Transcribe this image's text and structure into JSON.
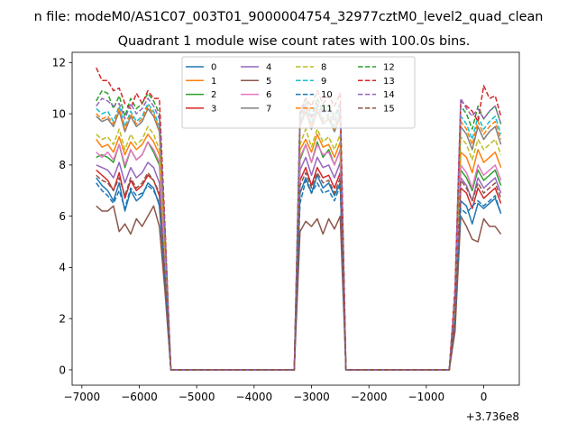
{
  "chart_data": {
    "type": "line",
    "suptitle": "n file: modeM0/AS1C07_003T01_9000004754_32977cztM0_level2_quad_clean",
    "title": "Quadrant 1 module wise count rates with 100.0s bins.",
    "xlabel": "",
    "ylabel": "",
    "x_offset_label": "+3.736e8",
    "xlim": [
      -7170,
      620
    ],
    "ylim": [
      -0.6,
      12.4
    ],
    "xticks": [
      -7000,
      -6000,
      -5000,
      -4000,
      -3000,
      -2000,
      -1000,
      0
    ],
    "xtick_labels": [
      "−7000",
      "−6000",
      "−5000",
      "−4000",
      "−3000",
      "−2000",
      "−1000",
      "0"
    ],
    "yticks": [
      0,
      2,
      4,
      6,
      8,
      10,
      12
    ],
    "ytick_labels": [
      "0",
      "2",
      "4",
      "6",
      "8",
      "10",
      "12"
    ],
    "grid": false,
    "legend_position": "top-center",
    "legend_columns": 4,
    "colors": [
      "#1f77b4",
      "#ff7f0e",
      "#2ca02c",
      "#d62728",
      "#9467bd",
      "#8c564b",
      "#e377c2",
      "#7f7f7f",
      "#bcbd22",
      "#17becf"
    ],
    "segment_x": [
      [
        -6750,
        -6650,
        -6550,
        -6450,
        -6350,
        -6250,
        -6150,
        -6050,
        -5950,
        -5850,
        -5750,
        -5650,
        -5550,
        -5450
      ],
      [
        -5450,
        -3300
      ],
      [
        -3300,
        -3200,
        -3100,
        -3000,
        -2900,
        -2800,
        -2700,
        -2600,
        -2500,
        -2400
      ],
      [
        -2400,
        -600
      ],
      [
        -600,
        -500,
        -400,
        -300,
        -200,
        -100,
        0,
        100,
        200,
        300
      ]
    ],
    "series": [
      {
        "name": "0",
        "style": "solid",
        "segments": [
          [
            7.5,
            7.2,
            7.0,
            6.6,
            7.3,
            6.2,
            7.0,
            6.6,
            6.8,
            7.3,
            7.1,
            6.4,
            3.4,
            0
          ],
          [
            0,
            0
          ],
          [
            0,
            6.9,
            7.5,
            6.9,
            7.6,
            7.1,
            7.3,
            6.8,
            7.3,
            0
          ],
          [
            0,
            0
          ],
          [
            0,
            1.8,
            6.6,
            6.4,
            5.7,
            6.5,
            6.3,
            6.5,
            6.7,
            6.1
          ]
        ]
      },
      {
        "name": "1",
        "style": "solid",
        "segments": [
          [
            9.0,
            8.7,
            8.8,
            8.5,
            9.1,
            8.4,
            8.9,
            8.6,
            8.8,
            9.2,
            8.9,
            8.4,
            4.6,
            0
          ],
          [
            0,
            0
          ],
          [
            0,
            8.6,
            9.0,
            8.5,
            9.2,
            8.7,
            8.8,
            8.3,
            8.9,
            0
          ],
          [
            0,
            0
          ],
          [
            0,
            2.4,
            8.5,
            8.3,
            7.7,
            8.6,
            8.1,
            8.3,
            8.5,
            7.9
          ]
        ]
      },
      {
        "name": "2",
        "style": "solid",
        "segments": [
          [
            8.3,
            8.4,
            8.3,
            8.1,
            8.8,
            7.9,
            8.6,
            8.2,
            8.4,
            8.9,
            8.5,
            8.0,
            4.3,
            0
          ],
          [
            0,
            0
          ],
          [
            0,
            8.2,
            8.8,
            8.1,
            8.9,
            8.3,
            8.6,
            8.0,
            8.6,
            0
          ],
          [
            0,
            0
          ],
          [
            0,
            2.2,
            7.8,
            7.5,
            7.0,
            7.8,
            7.4,
            7.6,
            7.8,
            7.2
          ]
        ]
      },
      {
        "name": "3",
        "style": "solid",
        "segments": [
          [
            7.8,
            7.6,
            7.4,
            7.0,
            7.7,
            6.7,
            7.4,
            7.0,
            7.2,
            7.6,
            7.4,
            6.8,
            3.6,
            0
          ],
          [
            0,
            0
          ],
          [
            0,
            7.4,
            7.9,
            7.2,
            7.9,
            7.5,
            7.6,
            7.1,
            7.7,
            0
          ],
          [
            0,
            0
          ],
          [
            0,
            2.0,
            7.1,
            6.9,
            6.3,
            7.1,
            6.7,
            6.9,
            7.1,
            6.5
          ]
        ]
      },
      {
        "name": "4",
        "style": "solid",
        "segments": [
          [
            8.0,
            7.9,
            7.8,
            7.5,
            8.1,
            7.3,
            7.9,
            7.5,
            7.7,
            8.1,
            7.9,
            7.3,
            3.9,
            0
          ],
          [
            0,
            0
          ],
          [
            0,
            7.8,
            8.3,
            7.6,
            8.3,
            7.9,
            8.0,
            7.5,
            8.1,
            0
          ],
          [
            0,
            0
          ],
          [
            0,
            2.1,
            7.5,
            7.2,
            6.6,
            7.5,
            7.1,
            7.3,
            7.5,
            6.9
          ]
        ]
      },
      {
        "name": "5",
        "style": "solid",
        "segments": [
          [
            6.4,
            6.2,
            6.2,
            6.4,
            5.4,
            5.7,
            5.3,
            5.9,
            5.6,
            6.0,
            6.4,
            5.6,
            3.0,
            0
          ],
          [
            0,
            0
          ],
          [
            0,
            5.4,
            5.8,
            5.6,
            5.9,
            5.3,
            5.9,
            5.5,
            6.0,
            0
          ],
          [
            0,
            0
          ],
          [
            0,
            1.5,
            6.0,
            5.6,
            5.1,
            5.0,
            5.9,
            5.6,
            5.6,
            5.3
          ]
        ]
      },
      {
        "name": "6",
        "style": "solid",
        "segments": [
          [
            8.5,
            8.3,
            8.5,
            8.2,
            8.8,
            8.0,
            8.6,
            8.2,
            8.4,
            8.9,
            8.6,
            8.1,
            4.3,
            0
          ],
          [
            0,
            0
          ],
          [
            0,
            8.3,
            8.8,
            8.1,
            8.8,
            8.4,
            8.5,
            8.0,
            8.6,
            0
          ],
          [
            0,
            0
          ],
          [
            0,
            2.3,
            8.0,
            7.7,
            7.1,
            8.0,
            7.6,
            7.8,
            8.0,
            7.4
          ]
        ]
      },
      {
        "name": "7",
        "style": "solid",
        "segments": [
          [
            9.9,
            9.7,
            9.8,
            9.5,
            10.1,
            9.3,
            9.9,
            9.5,
            9.7,
            10.2,
            9.9,
            9.3,
            5.0,
            0
          ],
          [
            0,
            0
          ],
          [
            0,
            9.5,
            10.1,
            9.4,
            10.1,
            9.6,
            9.8,
            9.3,
            9.9,
            0
          ],
          [
            0,
            0
          ],
          [
            0,
            2.8,
            9.5,
            9.2,
            8.6,
            9.5,
            9.0,
            9.3,
            9.5,
            8.8
          ]
        ]
      },
      {
        "name": "8",
        "style": "dashed",
        "segments": [
          [
            9.2,
            9.0,
            9.1,
            8.8,
            9.4,
            8.6,
            9.2,
            8.8,
            9.0,
            9.5,
            9.2,
            8.6,
            4.6,
            0
          ],
          [
            0,
            0
          ],
          [
            0,
            8.8,
            9.4,
            8.7,
            9.4,
            8.9,
            9.1,
            8.6,
            9.2,
            0
          ],
          [
            0,
            0
          ],
          [
            0,
            2.5,
            9.1,
            8.8,
            8.2,
            9.0,
            8.6,
            8.8,
            9.0,
            8.4
          ]
        ]
      },
      {
        "name": "9",
        "style": "dashed",
        "segments": [
          [
            10.2,
            10.0,
            10.1,
            9.7,
            10.3,
            9.5,
            10.1,
            9.7,
            9.9,
            10.4,
            10.1,
            9.5,
            5.1,
            0
          ],
          [
            0,
            0
          ],
          [
            0,
            9.7,
            10.3,
            9.6,
            10.3,
            9.8,
            10.0,
            9.5,
            10.1,
            0
          ],
          [
            0,
            0
          ],
          [
            0,
            2.9,
            9.9,
            9.6,
            9.0,
            9.9,
            9.4,
            9.7,
            9.9,
            9.2
          ]
        ]
      },
      {
        "name": "10",
        "style": "dashed",
        "segments": [
          [
            7.3,
            7.0,
            6.8,
            6.5,
            7.0,
            6.3,
            7.1,
            6.8,
            6.9,
            7.2,
            7.0,
            6.5,
            3.4,
            0
          ],
          [
            0,
            0
          ],
          [
            0,
            6.5,
            7.4,
            6.9,
            7.3,
            6.9,
            7.0,
            6.6,
            7.2,
            0
          ],
          [
            0,
            0
          ],
          [
            0,
            2.0,
            6.3,
            6.1,
            6.4,
            6.6,
            6.4,
            6.6,
            6.8,
            6.1
          ]
        ]
      },
      {
        "name": "11",
        "style": "dashed",
        "segments": [
          [
            10.0,
            9.8,
            9.9,
            9.6,
            10.2,
            9.4,
            10.0,
            9.6,
            9.8,
            10.3,
            10.0,
            9.4,
            5.0,
            0
          ],
          [
            0,
            0
          ],
          [
            0,
            9.6,
            10.2,
            9.5,
            10.2,
            9.7,
            9.9,
            9.4,
            10.0,
            0
          ],
          [
            0,
            0
          ],
          [
            0,
            2.8,
            9.7,
            9.4,
            8.8,
            9.7,
            9.2,
            9.5,
            9.7,
            9.0
          ]
        ]
      },
      {
        "name": "12",
        "style": "dashed",
        "segments": [
          [
            10.5,
            10.9,
            10.8,
            10.2,
            10.7,
            9.9,
            10.6,
            10.2,
            10.4,
            10.8,
            10.5,
            10.0,
            5.3,
            0
          ],
          [
            0,
            0
          ],
          [
            0,
            10.1,
            10.6,
            9.9,
            10.6,
            10.1,
            10.3,
            9.9,
            10.4,
            0
          ],
          [
            0,
            0
          ],
          [
            0,
            3.0,
            10.3,
            10.0,
            9.4,
            10.3,
            9.8,
            10.1,
            10.3,
            9.6
          ]
        ]
      },
      {
        "name": "13",
        "style": "dashed",
        "segments": [
          [
            11.8,
            11.3,
            11.3,
            10.9,
            11.0,
            10.4,
            10.2,
            10.8,
            10.4,
            10.9,
            10.6,
            10.6,
            5.5,
            0
          ],
          [
            0,
            0
          ],
          [
            0,
            10.0,
            10.6,
            10.3,
            10.9,
            10.4,
            10.7,
            10.3,
            10.8,
            0
          ],
          [
            0,
            0
          ],
          [
            0,
            3.2,
            10.5,
            10.3,
            10.1,
            9.7,
            11.1,
            10.6,
            10.7,
            9.9
          ]
        ]
      },
      {
        "name": "14",
        "style": "dashed",
        "segments": [
          [
            10.3,
            10.6,
            10.5,
            10.3,
            10.4,
            9.8,
            10.4,
            10.0,
            10.2,
            10.6,
            10.3,
            9.8,
            5.2,
            0
          ],
          [
            0,
            0
          ],
          [
            0,
            9.9,
            10.4,
            9.8,
            10.4,
            10.0,
            10.2,
            9.7,
            10.3,
            0
          ],
          [
            0,
            0
          ],
          [
            0,
            3.0,
            10.6,
            10.2,
            9.9,
            10.2,
            9.8,
            10.1,
            10.3,
            9.6
          ]
        ]
      },
      {
        "name": "15",
        "style": "dashed",
        "segments": [
          [
            7.6,
            7.4,
            7.3,
            7.0,
            7.5,
            6.8,
            7.5,
            7.1,
            7.3,
            7.7,
            7.4,
            6.9,
            3.7,
            0
          ],
          [
            0,
            0
          ],
          [
            0,
            7.2,
            7.7,
            7.1,
            7.7,
            7.3,
            7.4,
            6.9,
            7.5,
            0
          ],
          [
            0,
            0
          ],
          [
            0,
            2.0,
            7.4,
            7.1,
            6.6,
            7.3,
            6.9,
            7.1,
            7.3,
            6.7
          ]
        ]
      }
    ]
  }
}
